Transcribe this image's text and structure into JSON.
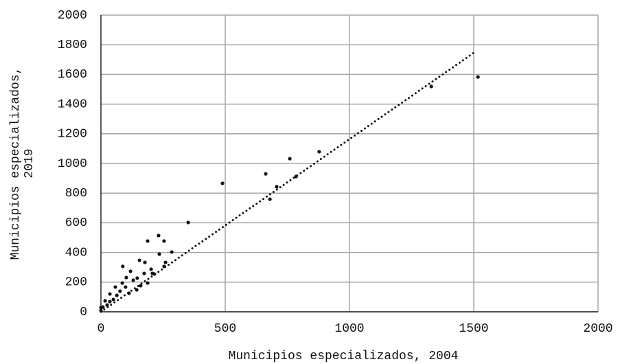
{
  "chart_data": {
    "type": "scatter",
    "x_label": "Municipios especializados, 2004",
    "y_label": [
      "Municipios especializados,",
      "2019"
    ],
    "xlim": [
      0,
      2000
    ],
    "ylim": [
      0,
      2000
    ],
    "xticks": [
      0,
      500,
      1000,
      1500,
      2000
    ],
    "yticks": [
      0,
      200,
      400,
      600,
      800,
      1000,
      1200,
      1400,
      1600,
      1800,
      2000
    ],
    "grid": true,
    "color": "#111111",
    "x": [
      1517,
      1329,
      878,
      760,
      663,
      489,
      707,
      680,
      785,
      351,
      188,
      232,
      254,
      285,
      235,
      155,
      177,
      88,
      119,
      254,
      260,
      207,
      174,
      146,
      102,
      130,
      188,
      86,
      58,
      36,
      17,
      8,
      160,
      113,
      77,
      64,
      36,
      144,
      215,
      202,
      99,
      25,
      0,
      0,
      50
    ],
    "values": [
      1583,
      1519,
      1079,
      1032,
      930,
      866,
      843,
      759,
      912,
      602,
      477,
      514,
      477,
      403,
      389,
      347,
      333,
      306,
      273,
      306,
      333,
      259,
      259,
      227,
      231,
      213,
      194,
      194,
      167,
      120,
      74,
      32,
      176,
      125,
      139,
      111,
      69,
      148,
      255,
      287,
      167,
      46,
      28,
      9,
      83
    ],
    "trend_line": {
      "x": [
        0,
        1508
      ],
      "y": [
        0,
        1755
      ]
    }
  }
}
